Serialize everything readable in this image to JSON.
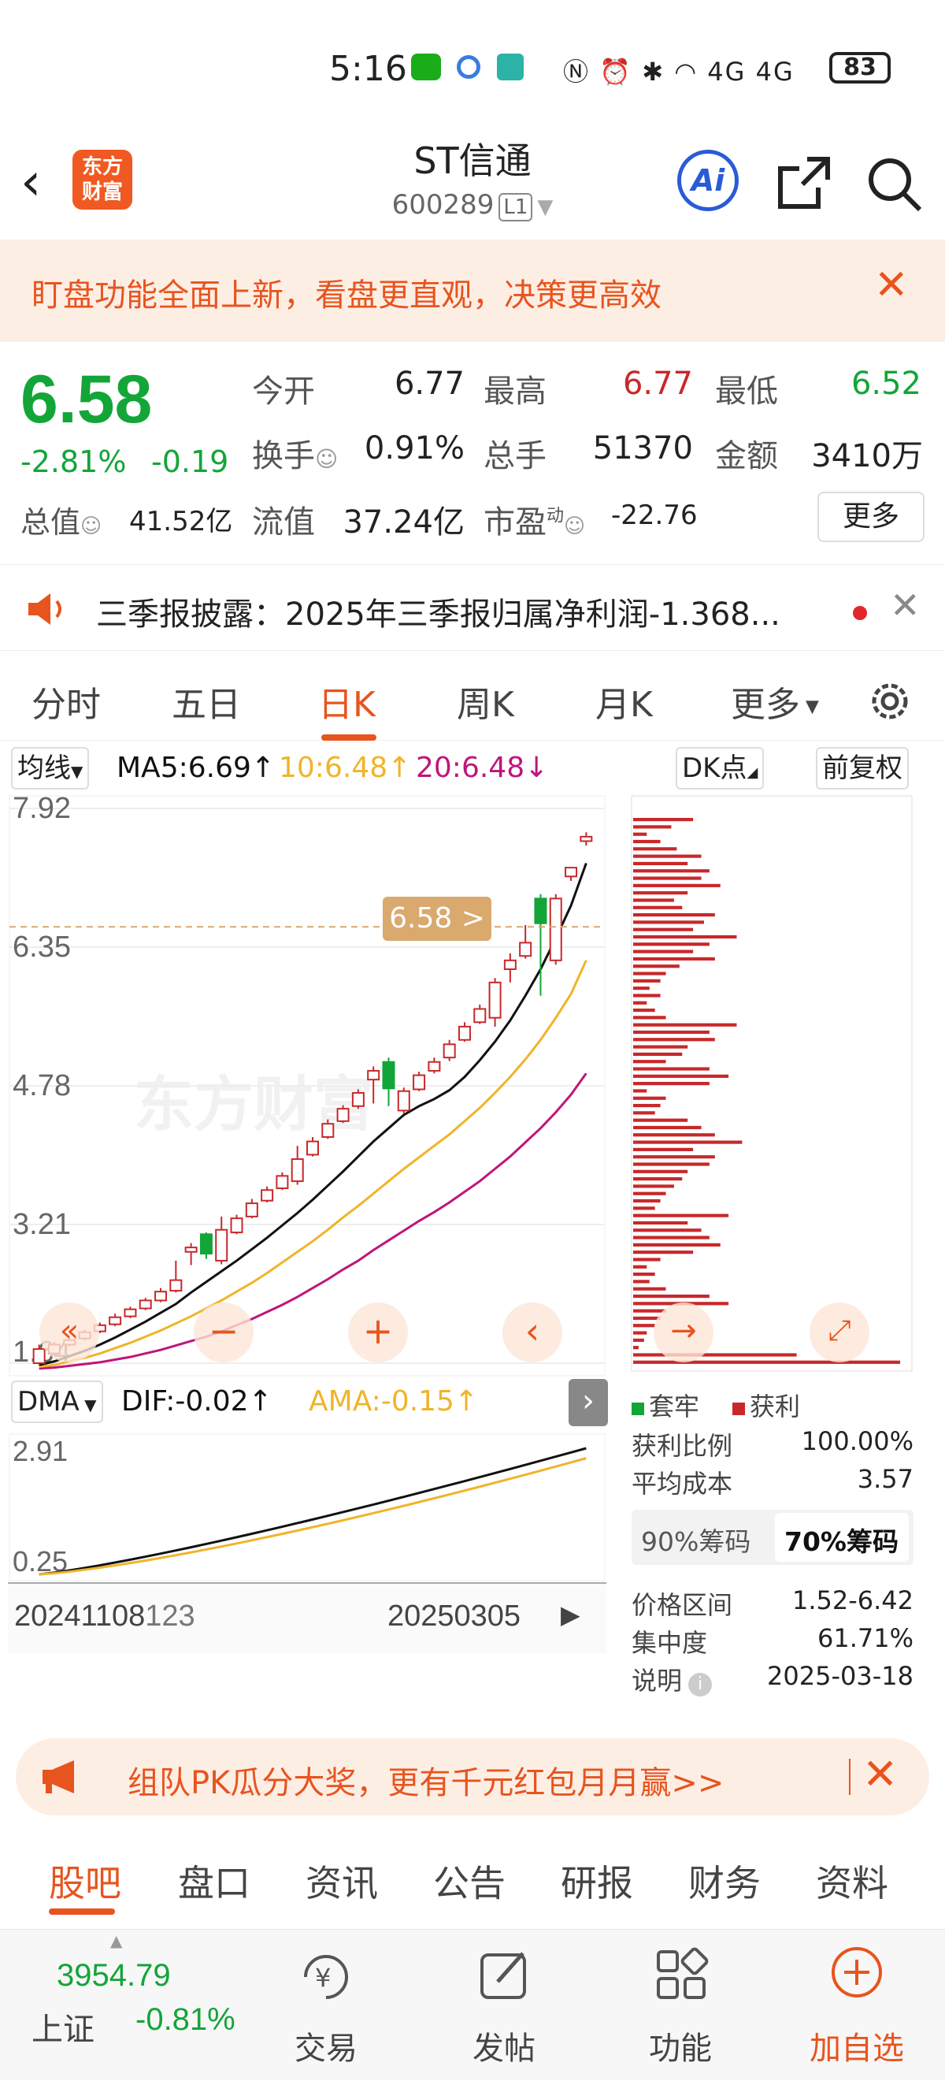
{
  "status_bar": {
    "time": "5:16",
    "network": "4G 4G",
    "battery": "83"
  },
  "header": {
    "title": "ST信通",
    "code": "600289",
    "level": "L1",
    "logo_text": "东方财富",
    "ai_label": "Ai"
  },
  "banner": {
    "text": "盯盘功能全面上新，看盘更直观，决策更高效"
  },
  "quote": {
    "price": "6.58",
    "change_pct": "-2.81%",
    "change_abs": "-0.19",
    "open_label": "今开",
    "open": "6.77",
    "high_label": "最高",
    "high": "6.77",
    "low_label": "最低",
    "low": "6.52",
    "turnover_label": "换手",
    "turnover": "0.91%",
    "volume_label": "总手",
    "volume": "51370",
    "amount_label": "金额",
    "amount": "3410万",
    "mktcap_label": "总值",
    "mktcap": "41.52亿",
    "float_label": "流值",
    "float": "37.24亿",
    "pe_label": "市盈",
    "pe_sup": "动",
    "pe": "-22.76",
    "more_label": "更多"
  },
  "notice": {
    "text": "三季报披露：2025年三季报归属净利润-1.368..."
  },
  "ktabs": {
    "items": [
      "分时",
      "五日",
      "日K",
      "周K",
      "月K",
      "更多"
    ],
    "active": "日K"
  },
  "ma_bar": {
    "selector": "均线",
    "ma5": "MA5:6.69↑",
    "ma10": "10:6.48↑",
    "ma20": "20:6.48↓",
    "dk": "DK点",
    "adjust": "前复权"
  },
  "colors": {
    "up": "#c8282a",
    "down": "#13a538",
    "accent": "#e8541e",
    "ma5": "#111111",
    "ma10": "#f0b429",
    "ma20": "#c0157a"
  },
  "chart_data": {
    "type": "candlestick",
    "y_ticks": [
      "7.92",
      "6.35",
      "4.78",
      "3.21",
      "1.64"
    ],
    "ylim": [
      1.64,
      7.92
    ],
    "current_price_label": "6.58 >",
    "current_price": 6.58,
    "candles": [
      {
        "o": 1.64,
        "c": 1.8,
        "h": 1.85,
        "l": 1.62
      },
      {
        "o": 1.75,
        "c": 1.85,
        "h": 1.88,
        "l": 1.72
      },
      {
        "o": 1.85,
        "c": 1.9,
        "h": 1.95,
        "l": 1.83
      },
      {
        "o": 1.92,
        "c": 1.99,
        "h": 2.02,
        "l": 1.9
      },
      {
        "o": 2.0,
        "c": 2.07,
        "h": 2.1,
        "l": 1.98
      },
      {
        "o": 2.08,
        "c": 2.16,
        "h": 2.2,
        "l": 2.06
      },
      {
        "o": 2.17,
        "c": 2.25,
        "h": 2.28,
        "l": 2.15
      },
      {
        "o": 2.26,
        "c": 2.35,
        "h": 2.38,
        "l": 2.24
      },
      {
        "o": 2.35,
        "c": 2.45,
        "h": 2.49,
        "l": 2.33
      },
      {
        "o": 2.46,
        "c": 2.58,
        "h": 2.8,
        "l": 2.44
      },
      {
        "o": 2.9,
        "c": 2.95,
        "h": 3.0,
        "l": 2.75
      },
      {
        "o": 3.1,
        "c": 2.88,
        "h": 3.12,
        "l": 2.82
      },
      {
        "o": 2.8,
        "c": 3.15,
        "h": 3.3,
        "l": 2.76
      },
      {
        "o": 3.12,
        "c": 3.28,
        "h": 3.32,
        "l": 3.1
      },
      {
        "o": 3.3,
        "c": 3.45,
        "h": 3.5,
        "l": 3.28
      },
      {
        "o": 3.48,
        "c": 3.6,
        "h": 3.64,
        "l": 3.46
      },
      {
        "o": 3.62,
        "c": 3.76,
        "h": 3.8,
        "l": 3.6
      },
      {
        "o": 3.7,
        "c": 3.95,
        "h": 4.1,
        "l": 3.66
      },
      {
        "o": 4.0,
        "c": 4.15,
        "h": 4.2,
        "l": 3.98
      },
      {
        "o": 4.2,
        "c": 4.35,
        "h": 4.4,
        "l": 4.18
      },
      {
        "o": 4.38,
        "c": 4.52,
        "h": 4.56,
        "l": 4.36
      },
      {
        "o": 4.55,
        "c": 4.7,
        "h": 4.74,
        "l": 4.52
      },
      {
        "o": 4.85,
        "c": 4.95,
        "h": 5.0,
        "l": 4.58
      },
      {
        "o": 5.05,
        "c": 4.75,
        "h": 5.1,
        "l": 4.55
      },
      {
        "o": 4.5,
        "c": 4.72,
        "h": 4.76,
        "l": 4.46
      },
      {
        "o": 4.74,
        "c": 4.9,
        "h": 4.94,
        "l": 4.72
      },
      {
        "o": 4.95,
        "c": 5.05,
        "h": 5.1,
        "l": 4.92
      },
      {
        "o": 5.1,
        "c": 5.25,
        "h": 5.3,
        "l": 5.06
      },
      {
        "o": 5.3,
        "c": 5.45,
        "h": 5.5,
        "l": 5.28
      },
      {
        "o": 5.5,
        "c": 5.65,
        "h": 5.7,
        "l": 5.48
      },
      {
        "o": 5.55,
        "c": 5.95,
        "h": 6.0,
        "l": 5.45
      },
      {
        "o": 6.1,
        "c": 6.2,
        "h": 6.28,
        "l": 5.95
      },
      {
        "o": 6.25,
        "c": 6.4,
        "h": 6.6,
        "l": 6.22
      },
      {
        "o": 6.9,
        "c": 6.62,
        "h": 6.95,
        "l": 5.8
      },
      {
        "o": 6.2,
        "c": 6.9,
        "h": 6.95,
        "l": 6.15
      },
      {
        "o": 7.15,
        "c": 7.25,
        "h": 7.25,
        "l": 7.1
      },
      {
        "o": 7.55,
        "c": 7.6,
        "h": 7.65,
        "l": 7.5
      }
    ],
    "ma5": [
      1.62,
      1.66,
      1.72,
      1.78,
      1.85,
      1.93,
      2.02,
      2.11,
      2.21,
      2.31,
      2.44,
      2.56,
      2.68,
      2.8,
      2.93,
      3.06,
      3.2,
      3.34,
      3.49,
      3.65,
      3.81,
      3.98,
      4.15,
      4.3,
      4.45,
      4.55,
      4.63,
      4.73,
      4.88,
      5.07,
      5.28,
      5.52,
      5.8,
      6.1,
      6.45,
      6.82,
      7.3
    ],
    "ma10": [
      1.6,
      1.62,
      1.66,
      1.7,
      1.75,
      1.81,
      1.87,
      1.94,
      2.01,
      2.09,
      2.17,
      2.26,
      2.35,
      2.45,
      2.55,
      2.66,
      2.78,
      2.9,
      3.02,
      3.15,
      3.29,
      3.42,
      3.56,
      3.7,
      3.84,
      3.97,
      4.1,
      4.23,
      4.38,
      4.53,
      4.7,
      4.88,
      5.08,
      5.3,
      5.55,
      5.82,
      6.2
    ],
    "ma20": [
      1.58,
      1.59,
      1.61,
      1.63,
      1.65,
      1.68,
      1.71,
      1.75,
      1.79,
      1.84,
      1.89,
      1.94,
      2.0,
      2.07,
      2.14,
      2.22,
      2.3,
      2.39,
      2.49,
      2.59,
      2.7,
      2.8,
      2.92,
      3.03,
      3.14,
      3.25,
      3.35,
      3.46,
      3.58,
      3.7,
      3.84,
      3.98,
      4.14,
      4.3,
      4.48,
      4.68,
      4.92
    ],
    "watermark": "东方财富"
  },
  "dma": {
    "selector": "DMA",
    "dif": "DIF:-0.02↑",
    "ama": "AMA:-0.15↑",
    "y_top": "2.91",
    "y_bottom": "0.25",
    "date_left": "20241108",
    "date_left2": "123",
    "date_right": "20250305"
  },
  "chip_panel": {
    "legend_trapped": "套牢",
    "legend_profit": "获利",
    "profit_ratio_label": "获利比例",
    "profit_ratio": "100.00%",
    "avg_cost_label": "平均成本",
    "avg_cost": "3.57",
    "tab_90": "90%筹码",
    "tab_70": "70%筹码",
    "price_range_label": "价格区间",
    "price_range": "1.52-6.42",
    "concentration_label": "集中度",
    "concentration": "61.71%",
    "note_label": "说明",
    "note_date": "2025-03-18",
    "distribution": [
      0.22,
      0.14,
      0.05,
      0.1,
      0.16,
      0.25,
      0.2,
      0.28,
      0.25,
      0.32,
      0.2,
      0.15,
      0.18,
      0.3,
      0.26,
      0.22,
      0.38,
      0.28,
      0.22,
      0.3,
      0.17,
      0.12,
      0.1,
      0.06,
      0.1,
      0.05,
      0.08,
      0.12,
      0.38,
      0.28,
      0.3,
      0.2,
      0.18,
      0.12,
      0.28,
      0.35,
      0.28,
      0.05,
      0.12,
      0.1,
      0.08,
      0.2,
      0.25,
      0.3,
      0.4,
      0.22,
      0.3,
      0.28,
      0.2,
      0.18,
      0.15,
      0.12,
      0.1,
      0.08,
      0.35,
      0.2,
      0.25,
      0.28,
      0.32,
      0.22,
      0.1,
      0.05,
      0.08,
      0.06,
      0.12,
      0.28,
      0.35,
      0.12,
      0.1,
      0.08,
      0.05,
      0.04,
      0.02,
      0.6,
      0.98
    ]
  },
  "promo": {
    "text": "组队PK瓜分大奖，更有千元红包月月赢>>"
  },
  "bottom_tabs": {
    "items": [
      "股吧",
      "盘口",
      "资讯",
      "公告",
      "研报",
      "财务",
      "资料"
    ],
    "active": "股吧"
  },
  "footer": {
    "index_value": "3954.79",
    "index_name": "上证",
    "index_change": "-0.81%",
    "trade": "交易",
    "post": "发帖",
    "func": "功能",
    "add": "加自选"
  }
}
